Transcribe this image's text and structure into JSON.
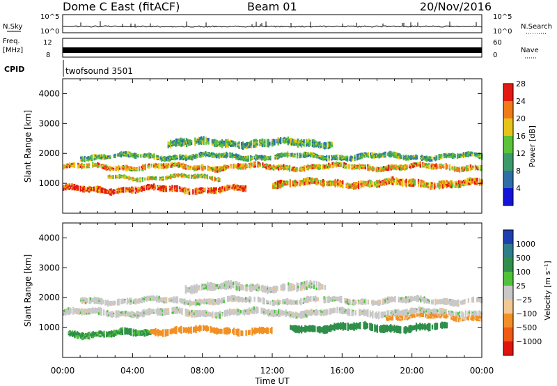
{
  "header": {
    "station": "Dome C East (fitACF)",
    "beam": "Beam 01",
    "date": "20/Nov/2016"
  },
  "top_panels": {
    "nsky": {
      "label": "N.Sky",
      "ticks": [
        "10^5",
        "10^0"
      ]
    },
    "nsearch": {
      "label": "N.Search",
      "ticks": [
        "10^5",
        "10^0"
      ]
    },
    "freq": {
      "label_lines": [
        "Freq.",
        "[MHz]"
      ],
      "ticks": [
        "12",
        "8"
      ]
    },
    "nave": {
      "label": "Nave",
      "ticks": [
        "60",
        "0"
      ]
    },
    "cpid": {
      "label": "CPID",
      "value": "twofsound 3501"
    }
  },
  "chart_data": [
    {
      "type": "heatmap",
      "name": "power",
      "xlabel": "Time UT",
      "ylabel": "Slant Range [km]",
      "xlim": [
        0,
        24
      ],
      "ylim": [
        0,
        4500
      ],
      "xticks": [
        "00:00",
        "04:00",
        "08:00",
        "12:00",
        "16:00",
        "20:00",
        "00:00"
      ],
      "yticks": [
        1000,
        2000,
        3000,
        4000
      ],
      "colorbar": {
        "title": "Power [dB]",
        "ticks": [
          "4",
          "8",
          "12",
          "16",
          "20",
          "24",
          "28"
        ],
        "colors": [
          "#1414d8",
          "#2f6ea8",
          "#3c9a6a",
          "#5cc23a",
          "#e6c41a",
          "#f07a18",
          "#e31a12"
        ]
      },
      "bands": [
        {
          "hour_start": 0.0,
          "hour_end": 24.0,
          "range_center": 1550,
          "range_width": 180,
          "level": 20
        },
        {
          "hour_start": 0.0,
          "hour_end": 10.5,
          "range_center": 800,
          "range_width": 200,
          "level": 24
        },
        {
          "hour_start": 12.0,
          "hour_end": 24.0,
          "range_center": 1000,
          "range_width": 240,
          "level": 20
        },
        {
          "hour_start": 1.0,
          "hour_end": 24.0,
          "range_center": 1900,
          "range_width": 180,
          "level": 12
        },
        {
          "hour_start": 6.0,
          "hour_end": 15.5,
          "range_center": 2350,
          "range_width": 250,
          "level": 12
        },
        {
          "hour_start": 2.5,
          "hour_end": 9.0,
          "range_center": 1200,
          "range_width": 140,
          "level": 16
        }
      ]
    },
    {
      "type": "heatmap",
      "name": "velocity",
      "xlabel": "Time UT",
      "ylabel": "Slant Range [km]",
      "xlim": [
        0,
        24
      ],
      "ylim": [
        0,
        4500
      ],
      "xticks": [
        "00:00",
        "04:00",
        "08:00",
        "12:00",
        "16:00",
        "20:00",
        "00:00"
      ],
      "yticks": [
        1000,
        2000,
        3000,
        4000
      ],
      "colorbar": {
        "title": "Velocity [m s⁻¹]",
        "ticks": [
          "1000",
          "500",
          "100",
          "25",
          "−25",
          "−100",
          "−500",
          "−1000"
        ],
        "colors": [
          "#1f3fb0",
          "#2e7d8a",
          "#2f8f4a",
          "#4fc23a",
          "#c8c8c8",
          "#f2c894",
          "#f29025",
          "#f05a14",
          "#e0140f"
        ]
      },
      "bands": [
        {
          "hour_start": 0.0,
          "hour_end": 24.0,
          "range_center": 1500,
          "range_width": 220,
          "level": 0
        },
        {
          "hour_start": 1.0,
          "hour_end": 24.0,
          "range_center": 1900,
          "range_width": 200,
          "level": 0
        },
        {
          "hour_start": 7.0,
          "hour_end": 15.0,
          "range_center": 2350,
          "range_width": 260,
          "level": 0
        },
        {
          "hour_start": 0.3,
          "hour_end": 5.0,
          "range_center": 800,
          "range_width": 220,
          "level": 150
        },
        {
          "hour_start": 5.0,
          "hour_end": 12.0,
          "range_center": 900,
          "range_width": 220,
          "level": -300
        },
        {
          "hour_start": 13.0,
          "hour_end": 22.0,
          "range_center": 1000,
          "range_width": 240,
          "level": 300
        },
        {
          "hour_start": 18.5,
          "hour_end": 24.0,
          "range_center": 1350,
          "range_width": 160,
          "level": -150
        }
      ]
    }
  ]
}
